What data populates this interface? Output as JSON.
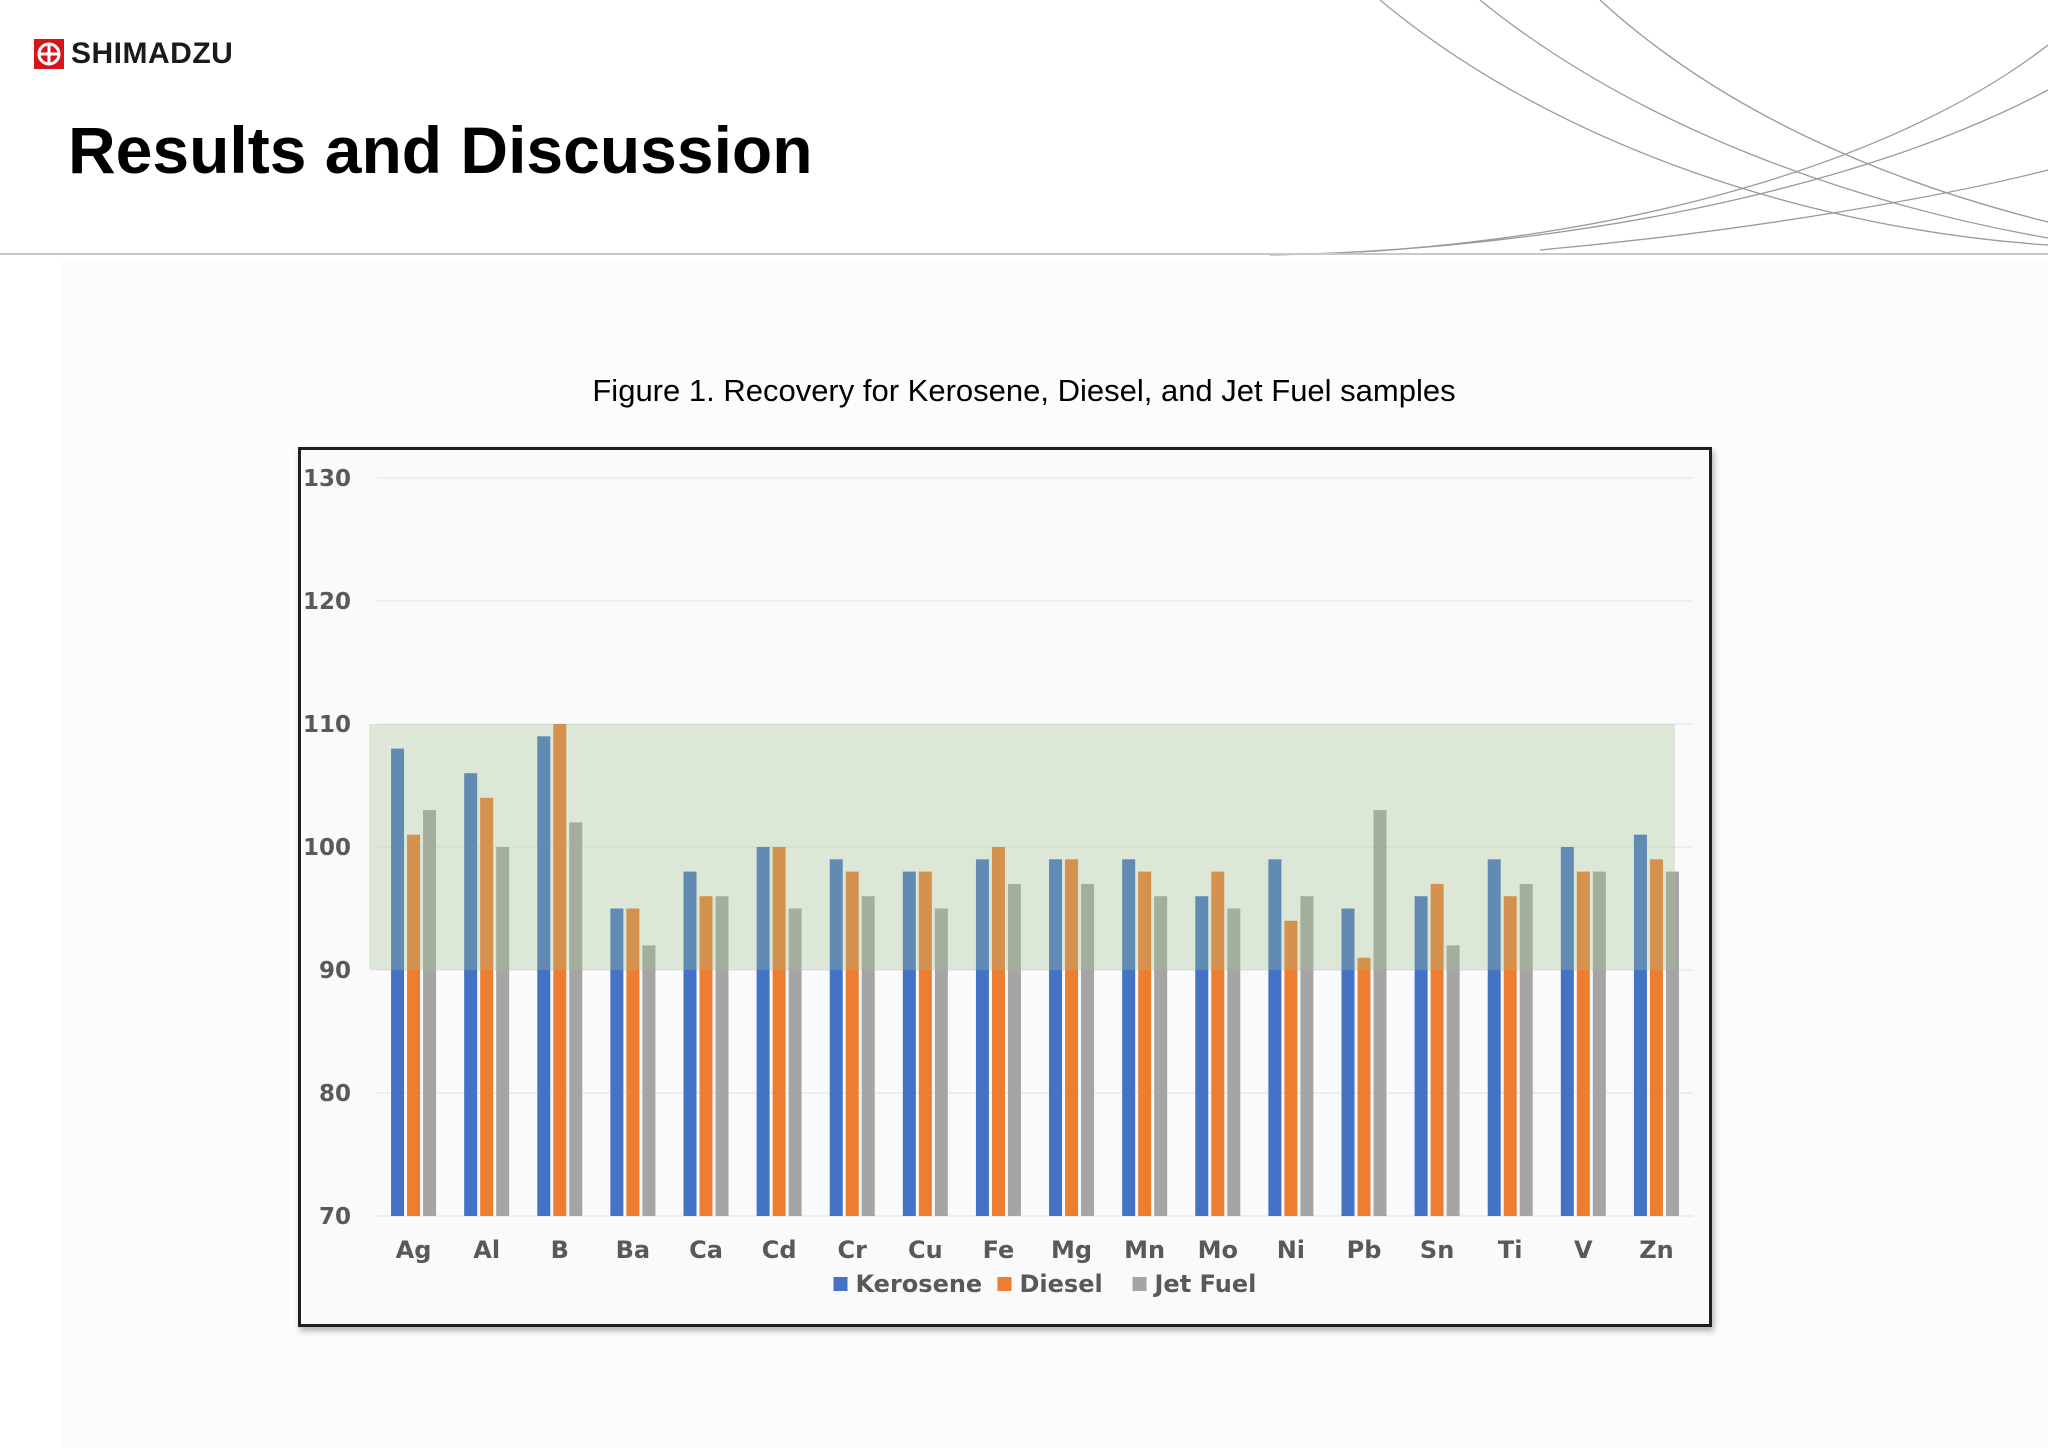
{
  "brand": {
    "name": "SHIMADZU",
    "color": "#d7141a"
  },
  "page": {
    "title": "Results and Discussion"
  },
  "figure": {
    "caption": "Figure 1. Recovery for Kerosene, Diesel, and Jet Fuel samples"
  },
  "chart_data": {
    "type": "bar",
    "categories": [
      "Ag",
      "Al",
      "B",
      "Ba",
      "Ca",
      "Cd",
      "Cr",
      "Cu",
      "Fe",
      "Mg",
      "Mn",
      "Mo",
      "Ni",
      "Pb",
      "Sn",
      "Ti",
      "V",
      "Zn"
    ],
    "series": [
      {
        "name": "Kerosene",
        "color": "#4472c4",
        "values": [
          108,
          106,
          109,
          95,
          98,
          100,
          99,
          98,
          99,
          99,
          99,
          96,
          99,
          95,
          96,
          99,
          100,
          101
        ]
      },
      {
        "name": "Diesel",
        "color": "#ed7d31",
        "values": [
          101,
          104,
          110,
          95,
          96,
          100,
          98,
          98,
          100,
          99,
          98,
          98,
          94,
          91,
          97,
          96,
          98,
          99
        ]
      },
      {
        "name": "Jet Fuel",
        "color": "#a5a5a5",
        "values": [
          103,
          100,
          102,
          92,
          96,
          95,
          96,
          95,
          97,
          97,
          96,
          95,
          96,
          103,
          92,
          97,
          98,
          98
        ]
      }
    ],
    "ylim": [
      70,
      130
    ],
    "yticks": [
      70,
      80,
      90,
      100,
      110,
      120,
      130
    ],
    "acceptance_band": {
      "from": 90,
      "to": 110,
      "color": "#9fc08b"
    },
    "grid": true,
    "legend_position": "bottom"
  }
}
